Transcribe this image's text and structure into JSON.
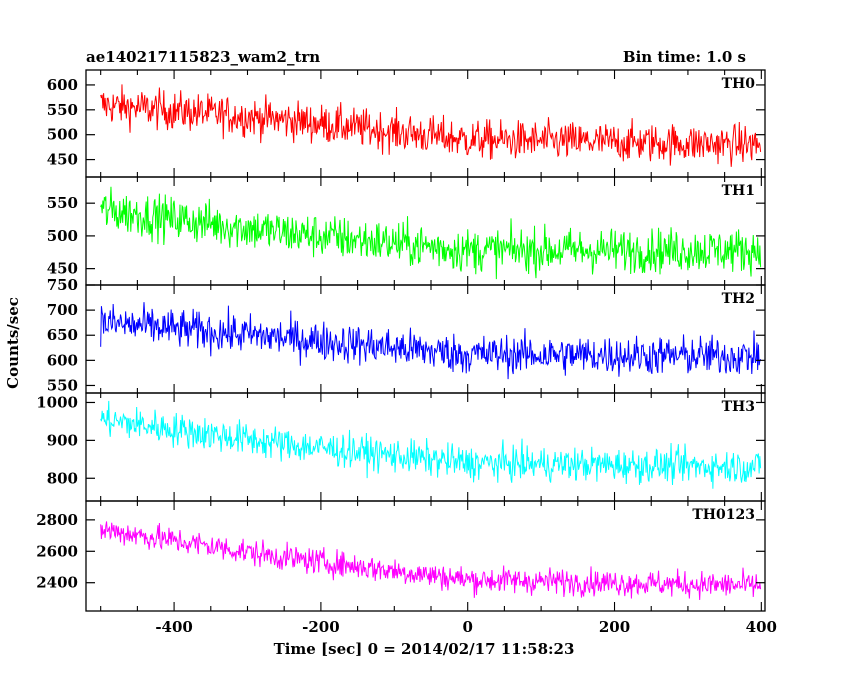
{
  "header": {
    "title": "ae140217115823_wam2_trn",
    "bin_time": "Bin time: 1.0 s"
  },
  "chart_data": {
    "type": "line",
    "xlabel": "Time [sec] 0 = 2014/02/17 11:58:23",
    "ylabel": "Counts/sec",
    "xlim": [
      -520,
      405
    ],
    "x_ticks": [
      -400,
      -200,
      0,
      200,
      400
    ],
    "x_start": -500,
    "x_end": 399,
    "panels": [
      {
        "name": "TH0",
        "color": "#ff0000",
        "ylim": [
          415,
          630
        ],
        "y_ticks": [
          450,
          500,
          550,
          600
        ],
        "trend_x": [
          -500,
          -250,
          0,
          400
        ],
        "trend_y": [
          560,
          530,
          490,
          480
        ],
        "noise": 28
      },
      {
        "name": "TH1",
        "color": "#00ff00",
        "ylim": [
          425,
          590
        ],
        "y_ticks": [
          450,
          500,
          550
        ],
        "trend_x": [
          -500,
          -250,
          0,
          400
        ],
        "trend_y": [
          540,
          505,
          478,
          478
        ],
        "noise": 24
      },
      {
        "name": "TH2",
        "color": "#0000ff",
        "ylim": [
          535,
          750
        ],
        "y_ticks": [
          550,
          600,
          650,
          700,
          750
        ],
        "trend_x": [
          -500,
          -250,
          0,
          400
        ],
        "trend_y": [
          675,
          645,
          612,
          608
        ],
        "noise": 28
      },
      {
        "name": "TH3",
        "color": "#00ffff",
        "ylim": [
          740,
          1025
        ],
        "y_ticks": [
          800,
          900,
          1000
        ],
        "trend_x": [
          -500,
          -250,
          0,
          400
        ],
        "trend_y": [
          955,
          890,
          840,
          830
        ],
        "noise": 32
      },
      {
        "name": "TH0123",
        "color": "#ff00ff",
        "ylim": [
          2220,
          2920
        ],
        "y_ticks": [
          2400,
          2600,
          2800
        ],
        "trend_x": [
          -500,
          -250,
          0,
          400
        ],
        "trend_y": [
          2740,
          2560,
          2420,
          2380
        ],
        "noise": 60
      }
    ]
  }
}
